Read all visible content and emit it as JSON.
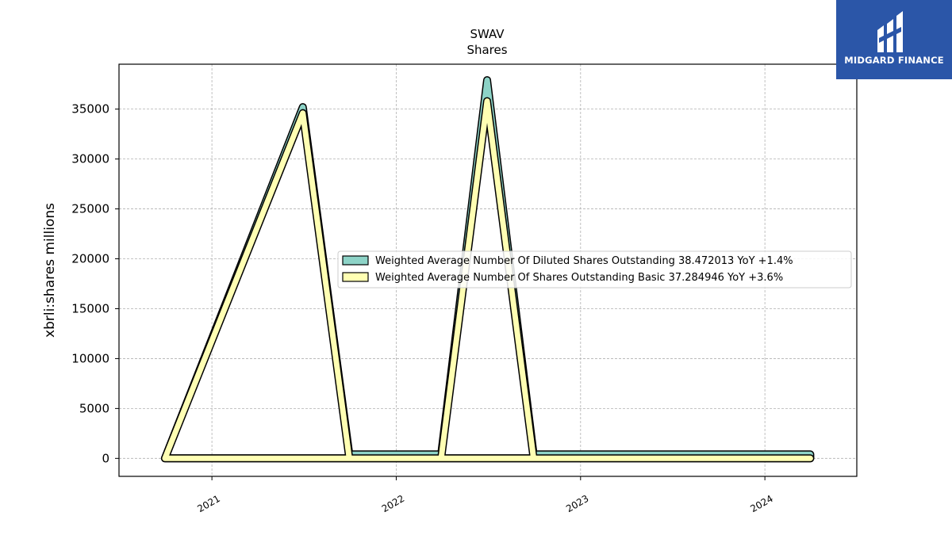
{
  "chart_data": {
    "type": "area",
    "title": "SWAV",
    "subtitle": "Shares",
    "xlabel": "",
    "ylabel": "xbrli:shares millions",
    "x_ticks": [
      "2021",
      "2022",
      "2023",
      "2024"
    ],
    "y_ticks": [
      0,
      5000,
      10000,
      15000,
      20000,
      25000,
      30000,
      35000
    ],
    "ylim": [
      -1800,
      39500
    ],
    "xlim": [
      "2020-07-01",
      "2024-07-01"
    ],
    "grid": true,
    "legend_position": "center-right",
    "x": [
      "2020-09-30",
      "2021-06-30",
      "2021-09-30",
      "2022-03-31",
      "2022-06-30",
      "2022-09-30",
      "2024-03-31"
    ],
    "series": [
      {
        "name": "Weighted Average Number Of Diluted Shares Outstanding  38.472013 YoY +1.4%",
        "color": "#8dd3c7",
        "values": [
          0,
          35200,
          400,
          400,
          37900,
          400,
          400
        ]
      },
      {
        "name": "Weighted Average Number Of Shares Outstanding Basic  37.284946 YoY +3.6%",
        "color": "#ffffb3",
        "values": [
          0,
          34600,
          0,
          0,
          35800,
          0,
          0
        ]
      }
    ]
  },
  "watermark": {
    "brand": "MIDGARD FINANCE",
    "background": "#2b56a8"
  }
}
